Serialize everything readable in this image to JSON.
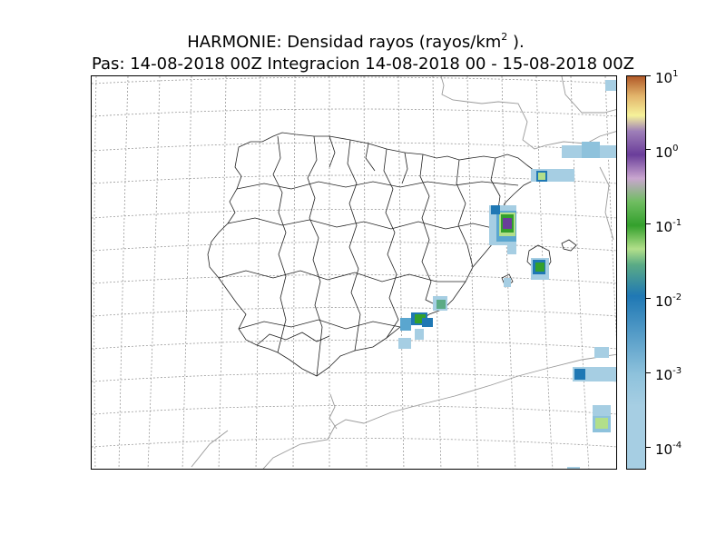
{
  "title": {
    "line1_prefix": "HARMONIE: Densidad rayos  (rayos/km",
    "line1_exponent": "2",
    "line1_suffix": " ).",
    "line2": "Pas: 14-08-2018 00Z Integracion 14-08-2018 00 - 15-08-2018 00Z"
  },
  "colorbar": {
    "scale": "log",
    "range": [
      5e-05,
      10
    ],
    "ticks": [
      {
        "base": "10",
        "exp": "1",
        "value": 10
      },
      {
        "base": "10",
        "exp": "0",
        "value": 1
      },
      {
        "base": "10",
        "exp": "-1",
        "value": 0.1
      },
      {
        "base": "10",
        "exp": "-2",
        "value": 0.01
      },
      {
        "base": "10",
        "exp": "-3",
        "value": 0.001
      },
      {
        "base": "10",
        "exp": "-4",
        "value": 0.0001
      }
    ],
    "colors": [
      "#a6cee3",
      "#1f78b4",
      "#b2df8a",
      "#33a02c",
      "#6a3d9a",
      "#f6f29a",
      "#b15928"
    ]
  },
  "map": {
    "region": "Iberian Peninsula and Balearic Islands",
    "lightning_areas": [
      {
        "name": "Catalonia coast",
        "max_density": 0.05
      },
      {
        "name": "Valencia coast",
        "max_density": 1
      },
      {
        "name": "Mallorca",
        "max_density": 0.2
      },
      {
        "name": "Murcia",
        "max_density": 0.2
      },
      {
        "name": "Mediterranean Sea east",
        "max_density": 0.005
      },
      {
        "name": "Algerian coast",
        "max_density": 0.05
      }
    ]
  }
}
